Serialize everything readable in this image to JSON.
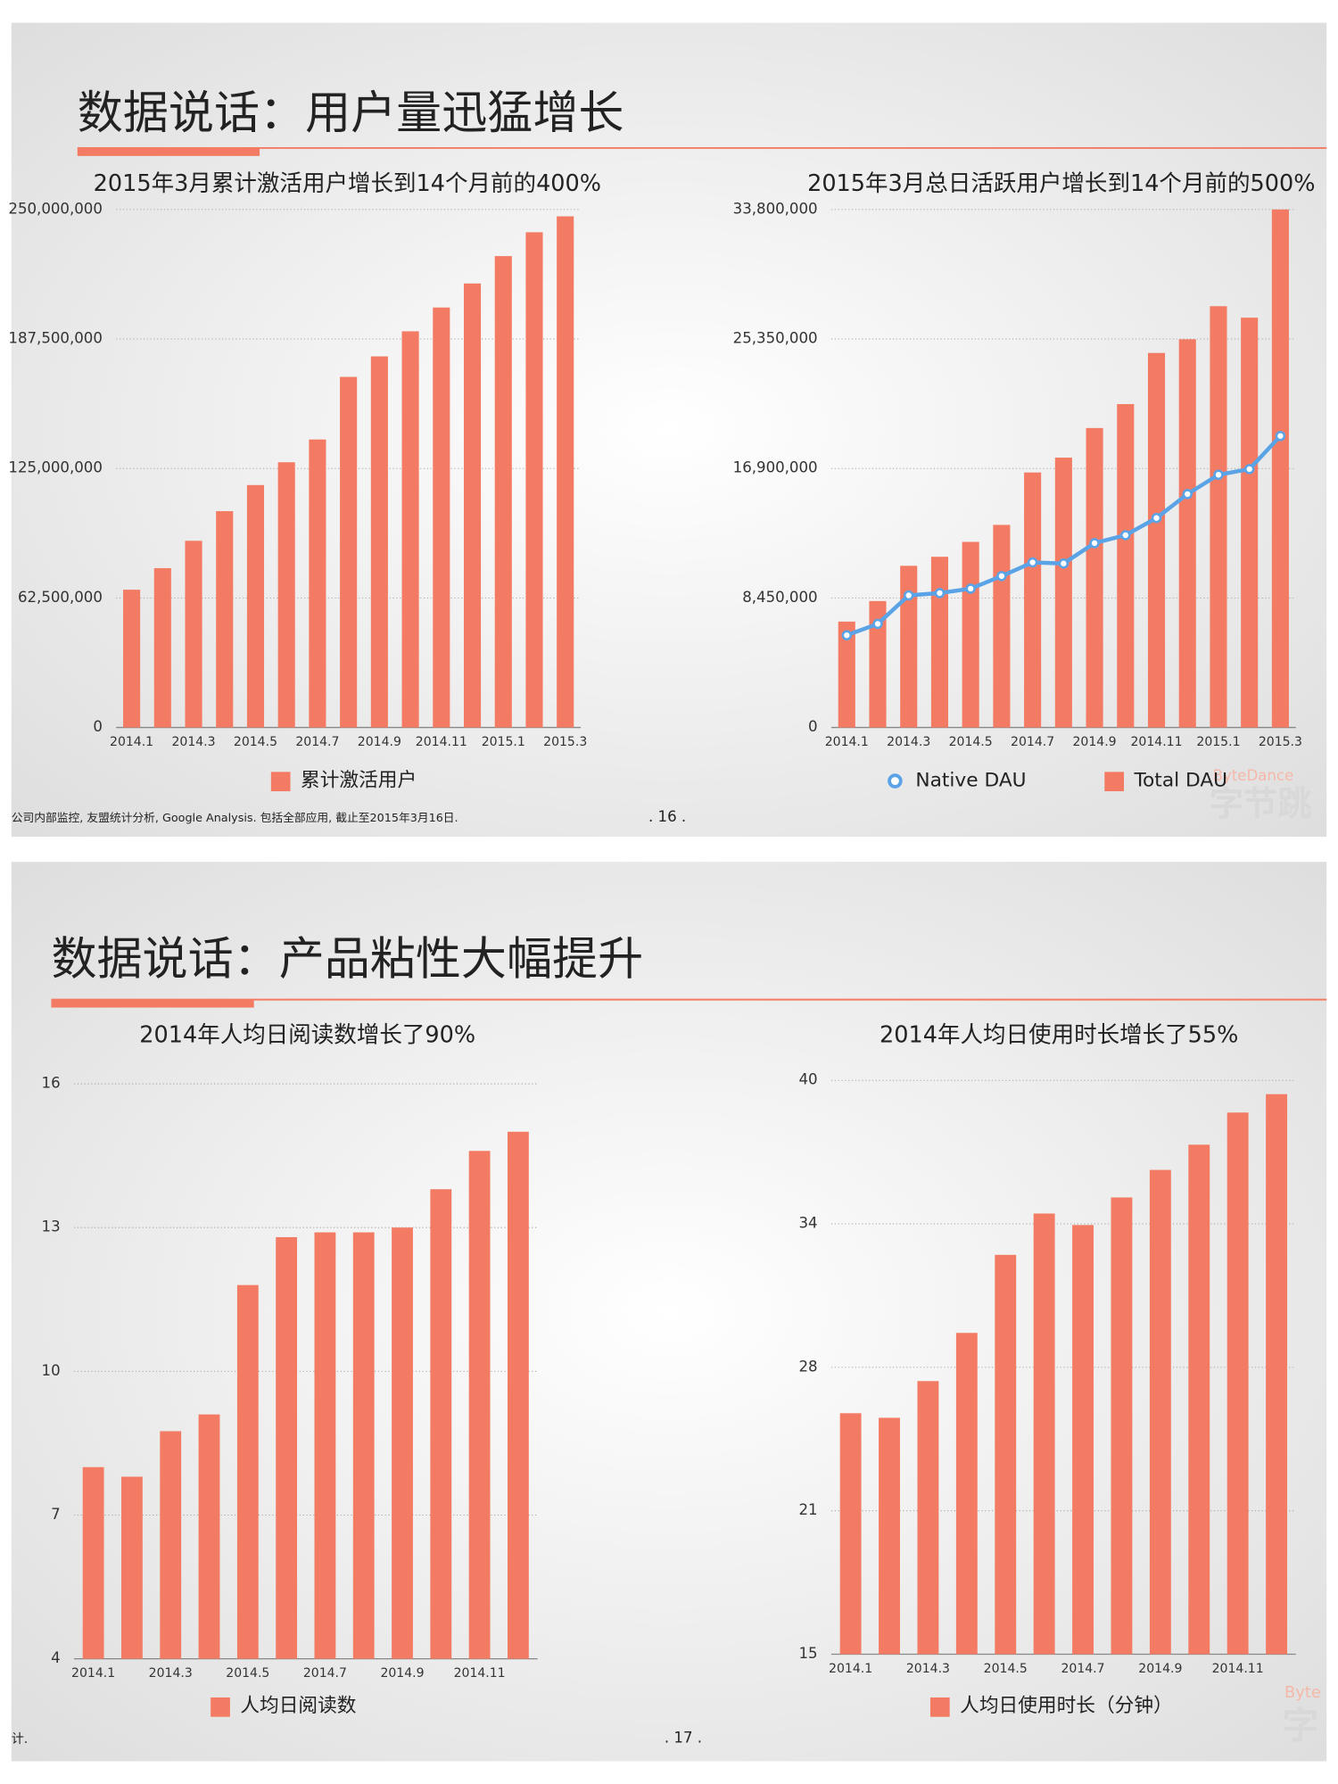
{
  "slides": [
    {
      "title": "数据说话：用户量迅猛增长",
      "note": "公司内部监控, 友盟统计分析, Google Analysis. 包括全部应用, 截止至2015年3月16日.",
      "page": ". 16 .",
      "watermark": [
        "ByteDance",
        "字节跳"
      ]
    },
    {
      "title": "数据说话：产品粘性大幅提升",
      "note": "计.",
      "page": ". 17 .",
      "watermark": [
        "Byte",
        "字"
      ]
    }
  ],
  "chart_data": [
    {
      "type": "bar",
      "title": "2015年3月累计激活用户增长到14个月前的400%",
      "categories": [
        "2014.1",
        null,
        "2014.3",
        null,
        "2014.5",
        null,
        "2014.7",
        null,
        "2014.9",
        null,
        "2014.11",
        null,
        "2015.1",
        null,
        "2015.3"
      ],
      "series": [
        {
          "name": "累计激活用户",
          "color": "#f47b63",
          "values": [
            66500000,
            76900000,
            90100000,
            104400000,
            117000000,
            128000000,
            139000000,
            169200000,
            179100000,
            191200000,
            202700000,
            214300000,
            227500000,
            239000000,
            246700000
          ]
        }
      ],
      "ylim": [
        0,
        250000000
      ],
      "yticks": [
        0,
        {
          "value": 62500000,
          "label": "62,500,000"
        },
        {
          "value": 125000000,
          "label": "125,000,000"
        },
        {
          "value": 187500000,
          "label": "187,500,000"
        },
        {
          "value": 250000000,
          "label": "250,000,000"
        }
      ],
      "grid": true
    },
    {
      "type": "bar",
      "title": "2015年3月总日活跃用户增长到14个月前的500%",
      "categories": [
        "2014.1",
        null,
        "2014.3",
        null,
        "2014.5",
        null,
        "2014.7",
        null,
        "2014.9",
        null,
        "2014.11",
        null,
        "2015.1",
        null,
        "2015.3"
      ],
      "series": [
        {
          "name": "Native DAU",
          "type": "line",
          "color": "#5aa3e6",
          "values": [
            6020000,
            6760000,
            8620000,
            8770000,
            9060000,
            9880000,
            10770000,
            10700000,
            12030000,
            12550000,
            13670000,
            15230000,
            16490000,
            16860000,
            19020000
          ]
        },
        {
          "name": "Total DAU",
          "type": "bar",
          "color": "#f47b63",
          "values": [
            6910000,
            8250000,
            10550000,
            11140000,
            12110000,
            13220000,
            16640000,
            17610000,
            19540000,
            21100000,
            24440000,
            25330000,
            27490000,
            26740000,
            33800000
          ]
        }
      ],
      "ylim": [
        0,
        33800000
      ],
      "yticks": [
        0,
        {
          "value": 8450000,
          "label": "8,450,000"
        },
        {
          "value": 16900000,
          "label": "16,900,000"
        },
        {
          "value": 25350000,
          "label": "25,350,000"
        },
        {
          "value": 33800000,
          "label": "33,800,000"
        }
      ],
      "grid": true
    },
    {
      "type": "bar",
      "title": "2014年人均日阅读数增长了90%",
      "categories": [
        "2014.1",
        null,
        "2014.3",
        null,
        "2014.5",
        null,
        "2014.7",
        null,
        "2014.9",
        null,
        "2014.11",
        null
      ],
      "series": [
        {
          "name": "人均日阅读数",
          "color": "#f47b63",
          "values": [
            8.0,
            7.8,
            8.75,
            9.1,
            11.8,
            12.8,
            12.9,
            12.9,
            13.0,
            13.8,
            14.6,
            15.0
          ]
        }
      ],
      "ylim": [
        4,
        16
      ],
      "yticks": [
        4,
        7,
        10,
        13,
        16
      ],
      "grid": true
    },
    {
      "type": "bar",
      "title": "2014年人均日使用时长增长了55%",
      "categories": [
        "2014.1",
        null,
        "2014.3",
        null,
        "2014.5",
        null,
        "2014.7",
        null,
        "2014.9",
        null,
        "2014.11",
        null
      ],
      "series": [
        {
          "name": "人均日使用时长（分钟）",
          "color": "#f47b63",
          "values": [
            25.5,
            25.3,
            26.9,
            29.0,
            32.4,
            34.2,
            33.7,
            34.9,
            36.1,
            37.2,
            38.6,
            39.4
          ]
        }
      ],
      "ylim": [
        15,
        40
      ],
      "yticks": [
        15,
        {
          "value": 21.25,
          "label": "21"
        },
        {
          "value": 27.5,
          "label": "28"
        },
        {
          "value": 33.75,
          "label": "34"
        },
        40
      ],
      "grid": true
    }
  ]
}
